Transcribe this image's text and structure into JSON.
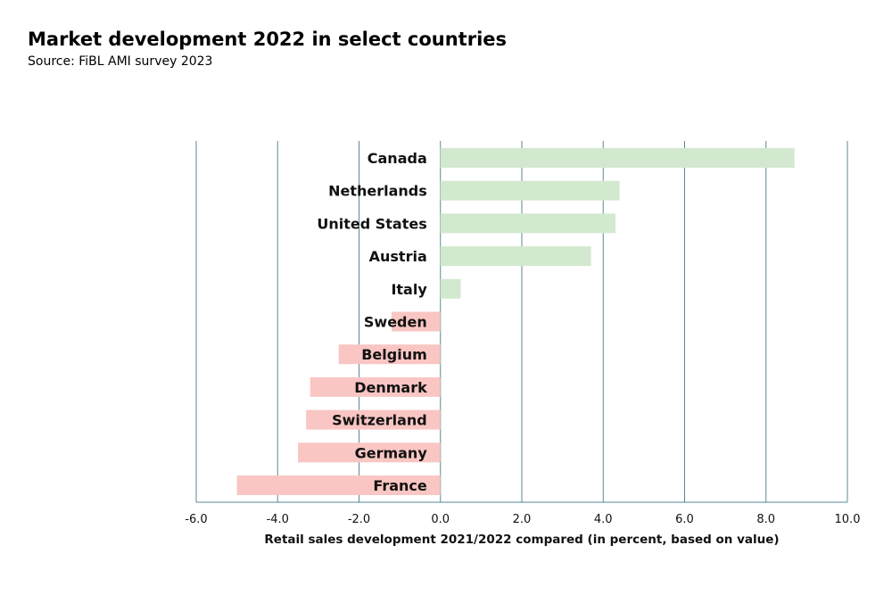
{
  "title": "Market development 2022 in select countries",
  "subtitle": "Source: FiBL AMI survey 2023",
  "chart_data": {
    "type": "bar",
    "orientation": "horizontal",
    "title": "Market development 2022 in select countries",
    "subtitle": "Source: FiBL AMI survey 2023",
    "xlabel": "Retail sales development 2021/2022 compared (in percent, based on value)",
    "ylabel": "",
    "xlim": [
      -6.0,
      10.0
    ],
    "xticks": [
      "-6.0",
      "-4.0",
      "-2.0",
      "0.0",
      "2.0",
      "4.0",
      "6.0",
      "8.0",
      "10.0"
    ],
    "categories": [
      "Canada",
      "Netherlands",
      "United States",
      "Austria",
      "Italy",
      "Sweden",
      "Belgium",
      "Denmark",
      "Switzerland",
      "Germany",
      "France"
    ],
    "values": [
      8.7,
      4.4,
      4.3,
      3.7,
      0.5,
      -1.2,
      -2.5,
      -3.2,
      -3.3,
      -3.5,
      -5.0
    ],
    "grid": true,
    "legend": "none",
    "colors": {
      "positive": "#d3e9cf",
      "negative": "#f9c6c3",
      "gridline": "#5a8a94"
    }
  }
}
